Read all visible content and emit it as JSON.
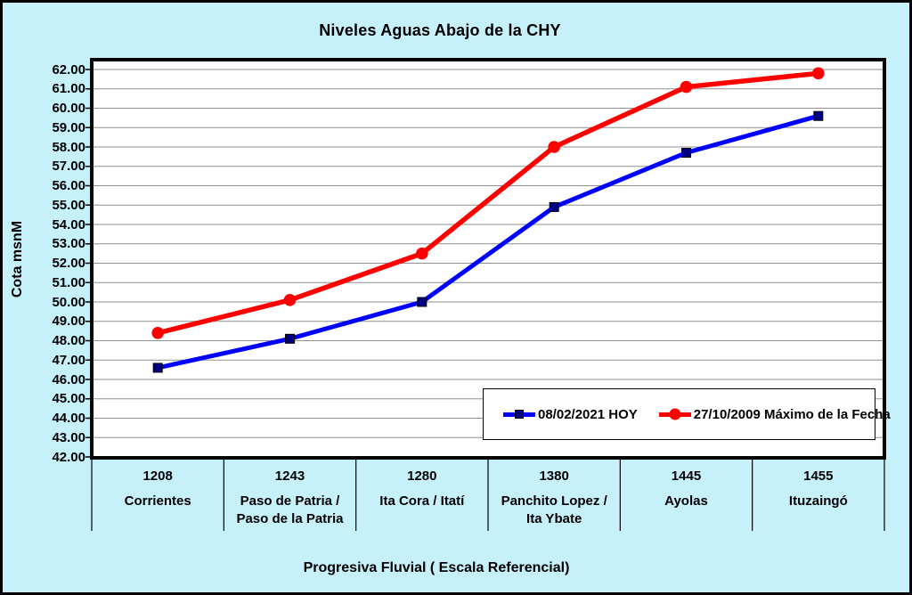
{
  "window": {
    "background_color": "#C7F1FA",
    "frame_color": "#000000"
  },
  "chart_data": {
    "type": "line",
    "title": "Niveles Aguas Abajo de la CHY",
    "ylabel": "Cota msnM",
    "xlabel": "Progresiva Fluvial ( Escala Referencial)",
    "ylim": [
      42,
      62
    ],
    "y_tick_step": 1,
    "y_tick_decimals": 2,
    "grid": true,
    "gridline_color": "#8F8F8F",
    "plot_background": "#FFFFFF",
    "legend_position": "inside-bottom-right",
    "categories": [
      "1208",
      "1243",
      "1280",
      "1380",
      "1445",
      "1455"
    ],
    "stations": [
      "Corrientes",
      "Paso de Patria / Paso de la Patria",
      "Ita Cora / Itatí",
      "Panchito Lopez / Ita Ybate",
      "Ayolas",
      "Ituzaingó"
    ],
    "series": [
      {
        "name": "08/02/2021 HOY",
        "color": "#0000FF",
        "marker": "square",
        "marker_color": "#000080",
        "values": [
          46.6,
          48.1,
          50.0,
          54.9,
          57.7,
          59.6
        ]
      },
      {
        "name": "27/10/2009 Máximo de la Fecha",
        "color": "#FF0000",
        "marker": "circle",
        "marker_color": "#FF0000",
        "values": [
          48.4,
          50.1,
          52.5,
          58.0,
          61.1,
          61.8
        ]
      }
    ]
  }
}
